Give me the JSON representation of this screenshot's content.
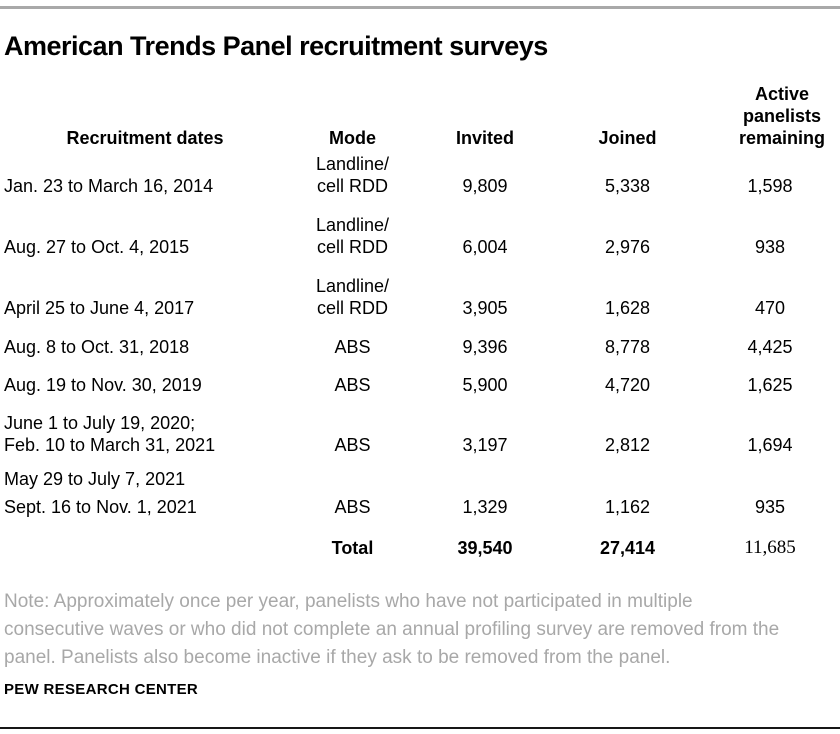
{
  "chart_data": {
    "type": "table",
    "title": "American Trends Panel recruitment surveys",
    "columns": {
      "dates": "Recruitment dates",
      "mode": "Mode",
      "invited": "Invited",
      "joined": "Joined",
      "active": "Active\npanelists\nremaining"
    },
    "rows": [
      {
        "dates": [
          "Jan. 23 to March 16, 2014"
        ],
        "mode": "Landline/\ncell RDD",
        "invited": "9,809",
        "joined": "5,338",
        "active": "1,598"
      },
      {
        "dates": [
          "Aug. 27 to Oct. 4, 2015"
        ],
        "mode": "Landline/\ncell RDD",
        "invited": "6,004",
        "joined": "2,976",
        "active": "938"
      },
      {
        "dates": [
          "April 25 to June 4, 2017"
        ],
        "mode": "Landline/\ncell RDD",
        "invited": "3,905",
        "joined": "1,628",
        "active": "470"
      },
      {
        "dates": [
          "Aug. 8 to Oct. 31, 2018"
        ],
        "mode": "ABS",
        "invited": "9,396",
        "joined": "8,778",
        "active": "4,425"
      },
      {
        "dates": [
          "Aug. 19 to Nov. 30, 2019"
        ],
        "mode": "ABS",
        "invited": "5,900",
        "joined": "4,720",
        "active": "1,625"
      },
      {
        "dates": [
          "June 1 to July 19, 2020;",
          "Feb. 10 to March 31, 2021"
        ],
        "mode": "ABS",
        "invited": "3,197",
        "joined": "2,812",
        "active": "1,694"
      },
      {
        "dates": [
          "May 29 to July 7, 2021",
          "Sept. 16 to Nov. 1, 2021"
        ],
        "mode": "ABS",
        "invited": "1,329",
        "joined": "1,162",
        "active": "935"
      }
    ],
    "total": {
      "label": "Total",
      "invited": "39,540",
      "joined": "27,414",
      "active": "11,685"
    },
    "note_lines": [
      "Note: Approximately once per year, panelists who have not participated in multiple",
      "consecutive waves or who did not complete an annual profiling survey are removed from the",
      "panel. Panelists also become inactive if they ask to be removed from the panel."
    ],
    "source": "PEW RESEARCH CENTER",
    "layout": {
      "grid": "off",
      "number_alignment": "center"
    }
  },
  "colors": {
    "text": "#000000",
    "note_text": "#a8a8a8",
    "top_rule": "#a9a9a9",
    "bottom_rule": "#161616"
  }
}
